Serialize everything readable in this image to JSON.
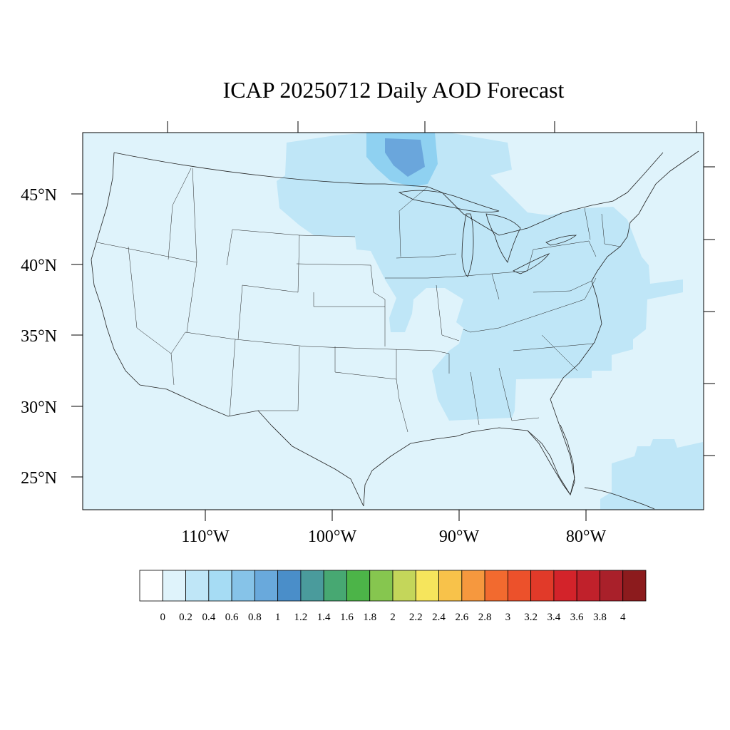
{
  "title": "ICAP 20250712 Daily AOD Forecast",
  "colors": {
    "background_aod": "#dff3fb",
    "plume_light": "#bfe6f7",
    "plume_mid": "#8fd1f1",
    "plume_dark": "#6aa6dc",
    "coast": "#000000",
    "border": "#222222"
  },
  "map": {
    "lat_labels": [
      "45°N",
      "40°N",
      "35°N",
      "30°N",
      "25°N"
    ],
    "lon_labels": [
      "110°W",
      "100°W",
      "90°W",
      "80°W"
    ]
  },
  "colorbar": {
    "colors": [
      "#ffffff",
      "#dff3fb",
      "#bfe6f7",
      "#a6dcf4",
      "#86c3e8",
      "#69a9dc",
      "#4a8ec9",
      "#4a9b9c",
      "#47a872",
      "#4cb448",
      "#86c64f",
      "#c4d65a",
      "#f6e55c",
      "#f8c24a",
      "#f6983e",
      "#f26a2f",
      "#ec512b",
      "#e13a29",
      "#d3232a",
      "#c0212b",
      "#a9202a",
      "#8c1b1d"
    ],
    "labels": [
      "0",
      "0.2",
      "0.4",
      "0.6",
      "0.8",
      "1",
      "1.2",
      "1.4",
      "1.6",
      "1.8",
      "2",
      "2.2",
      "2.4",
      "2.6",
      "2.8",
      "3",
      "3.2",
      "3.4",
      "3.6",
      "3.8",
      "4"
    ]
  }
}
